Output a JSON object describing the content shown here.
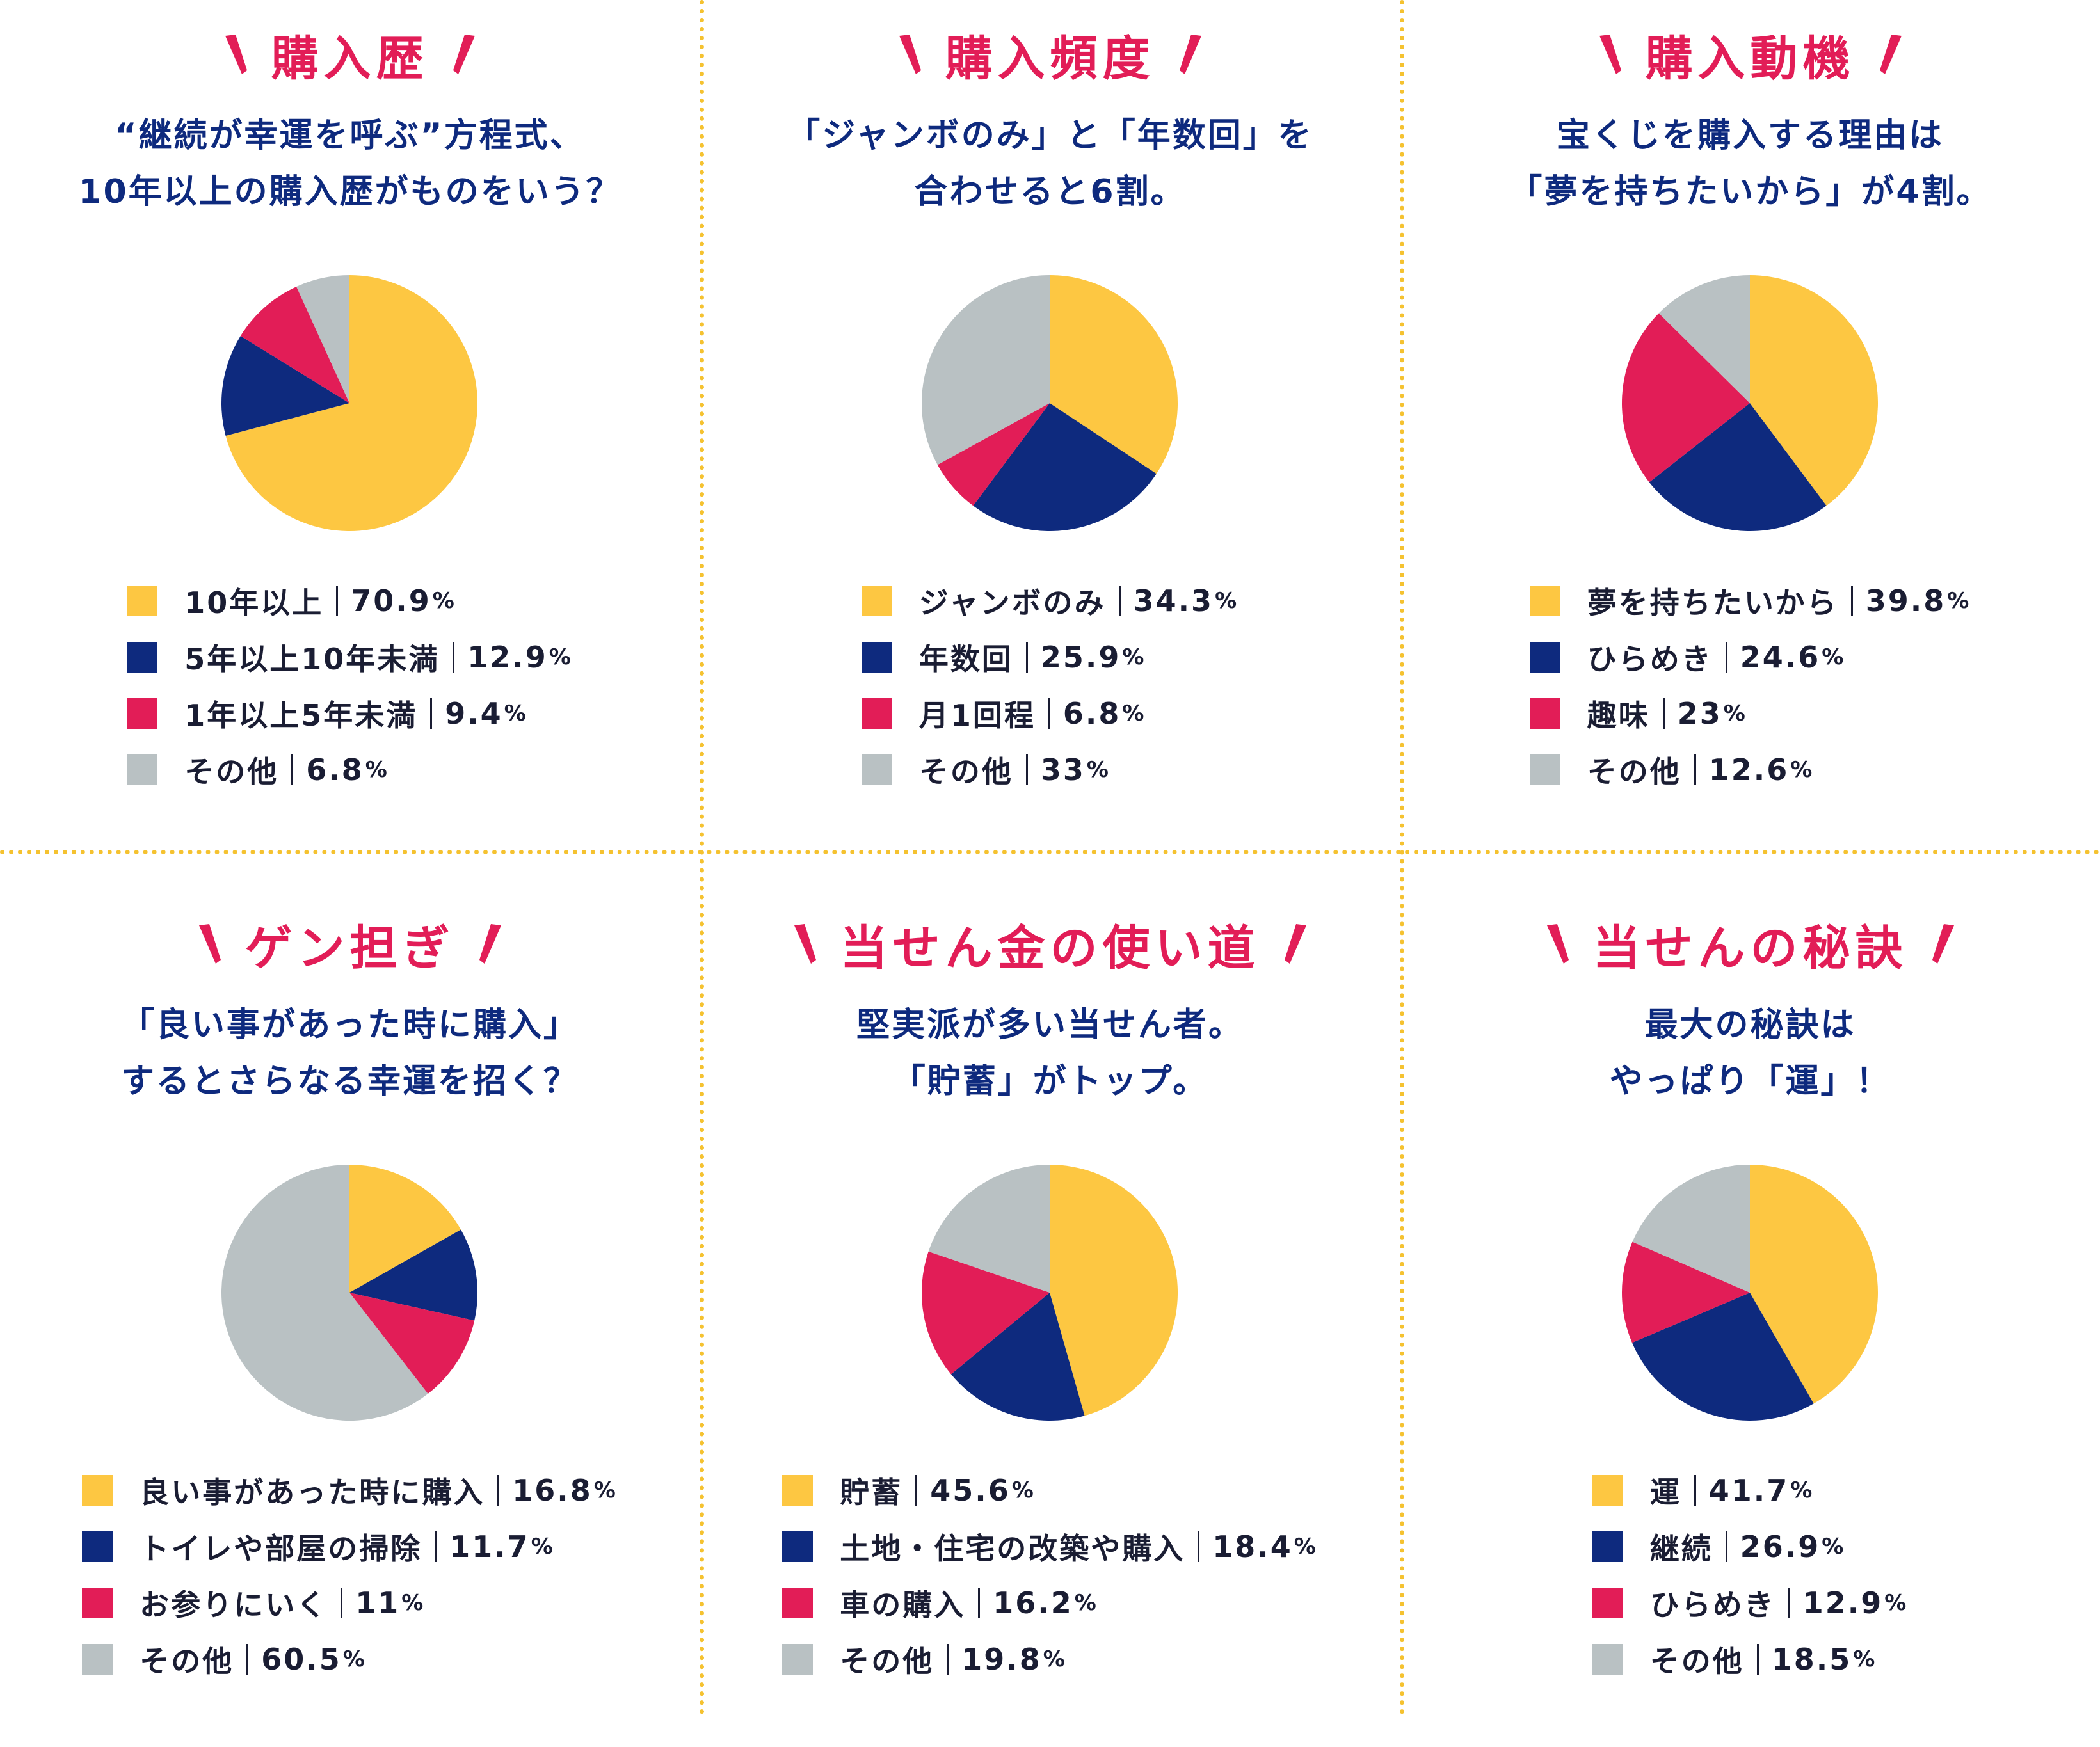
{
  "colors": {
    "yellow": "#fdc742",
    "navy": "#0e2a7e",
    "red": "#e21d57",
    "gray": "#b9c1c3",
    "accent": "#e21d57",
    "divider": "#f5c230"
  },
  "panels": [
    {
      "title": "購入歴",
      "subtitle": [
        "“継続が幸運を呼ぶ”方程式、",
        "10年以上の購入歴がものをいう？"
      ]
    },
    {
      "title": "購入頻度",
      "subtitle": [
        "「ジャンボのみ」と「年数回」を",
        "合わせると6割。"
      ]
    },
    {
      "title": "購入動機",
      "subtitle": [
        "宝くじを購入する理由は",
        "「夢を持ちたいから」が4割。"
      ]
    },
    {
      "title": "ゲン担ぎ",
      "subtitle": [
        "「良い事があった時に購入」",
        "するとさらなる幸運を招く？"
      ]
    },
    {
      "title": "当せん金の使い道",
      "subtitle": [
        "堅実派が多い当せん者。",
        "「貯蓄」がトップ。"
      ]
    },
    {
      "title": "当せんの秘訣",
      "subtitle": [
        "最大の秘訣は",
        "やっぱり「運」！"
      ]
    }
  ],
  "chart_data": [
    {
      "type": "pie",
      "title": "購入歴",
      "categories": [
        "10年以上",
        "5年以上10年未満",
        "1年以上5年未満",
        "その他"
      ],
      "values": [
        70.9,
        12.9,
        9.4,
        6.8
      ],
      "labels": [
        "70.9",
        "12.9",
        "9.4",
        "6.8"
      ],
      "colors": [
        "#fdc742",
        "#0e2a7e",
        "#e21d57",
        "#b9c1c3"
      ],
      "unit": "%"
    },
    {
      "type": "pie",
      "title": "購入頻度",
      "categories": [
        "ジャンボのみ",
        "年数回",
        "月1回程",
        "その他"
      ],
      "values": [
        34.3,
        25.9,
        6.8,
        33
      ],
      "labels": [
        "34.3",
        "25.9",
        "6.8",
        "33"
      ],
      "colors": [
        "#fdc742",
        "#0e2a7e",
        "#e21d57",
        "#b9c1c3"
      ],
      "unit": "%"
    },
    {
      "type": "pie",
      "title": "購入動機",
      "categories": [
        "夢を持ちたいから",
        "ひらめき",
        "趣味",
        "その他"
      ],
      "values": [
        39.8,
        24.6,
        23,
        12.6
      ],
      "labels": [
        "39.8",
        "24.6",
        "23",
        "12.6"
      ],
      "colors": [
        "#fdc742",
        "#0e2a7e",
        "#e21d57",
        "#b9c1c3"
      ],
      "unit": "%"
    },
    {
      "type": "pie",
      "title": "ゲン担ぎ",
      "categories": [
        "良い事があった時に購入",
        "トイレや部屋の掃除",
        "お参りにいく",
        "その他"
      ],
      "values": [
        16.8,
        11.7,
        11,
        60.5
      ],
      "labels": [
        "16.8",
        "11.7",
        "11",
        "60.5"
      ],
      "colors": [
        "#fdc742",
        "#0e2a7e",
        "#e21d57",
        "#b9c1c3"
      ],
      "unit": "%"
    },
    {
      "type": "pie",
      "title": "当せん金の使い道",
      "categories": [
        "貯蓄",
        "土地・住宅の改築や購入",
        "車の購入",
        "その他"
      ],
      "values": [
        45.6,
        18.4,
        16.2,
        19.8
      ],
      "labels": [
        "45.6",
        "18.4",
        "16.2",
        "19.8"
      ],
      "colors": [
        "#fdc742",
        "#0e2a7e",
        "#e21d57",
        "#b9c1c3"
      ],
      "unit": "%"
    },
    {
      "type": "pie",
      "title": "当せんの秘訣",
      "categories": [
        "運",
        "継続",
        "ひらめき",
        "その他"
      ],
      "values": [
        41.7,
        26.9,
        12.9,
        18.5
      ],
      "labels": [
        "41.7",
        "26.9",
        "12.9",
        "18.5"
      ],
      "colors": [
        "#fdc742",
        "#0e2a7e",
        "#e21d57",
        "#b9c1c3"
      ],
      "unit": "%"
    }
  ]
}
